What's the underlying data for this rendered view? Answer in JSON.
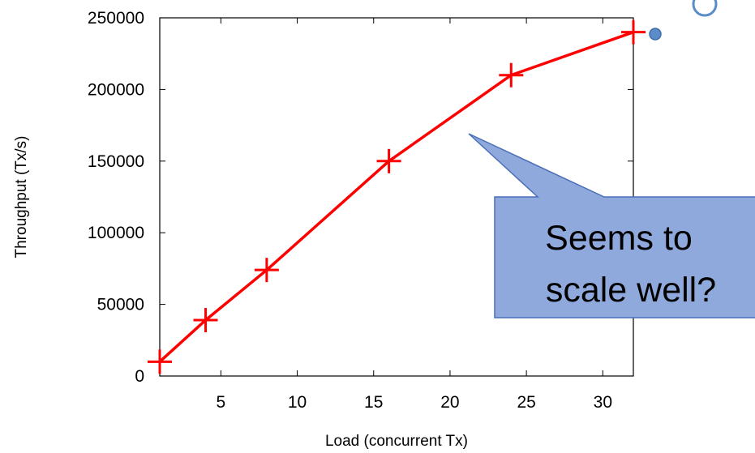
{
  "chart_data": {
    "type": "line",
    "title": "",
    "xlabel": "Load (concurrent Tx)",
    "ylabel": "Throughput (Tx/s)",
    "xlim": [
      1,
      32
    ],
    "ylim": [
      0,
      250000
    ],
    "x_ticks": [
      5,
      10,
      15,
      20,
      25,
      30
    ],
    "y_ticks": [
      0,
      50000,
      100000,
      150000,
      200000,
      250000
    ],
    "x_tick_labels": [
      "5",
      "10",
      "15",
      "20",
      "25",
      "30"
    ],
    "y_tick_labels": [
      "0",
      "50000",
      "100000",
      "150000",
      "200000",
      "250000"
    ],
    "grid": false,
    "legend": "none",
    "series": [
      {
        "x": [
          1,
          4,
          8,
          16,
          24,
          32
        ],
        "y": [
          10000,
          39000,
          74000,
          150000,
          210000,
          240000
        ],
        "color": "#ff0000",
        "marker": "plus"
      }
    ]
  },
  "callout": {
    "lines": [
      "Seems to",
      "scale well?"
    ],
    "fill": "#8fa9dc",
    "border": "#4a6fb8"
  },
  "colors": {
    "decoration_circle": "#5b8bc9"
  }
}
